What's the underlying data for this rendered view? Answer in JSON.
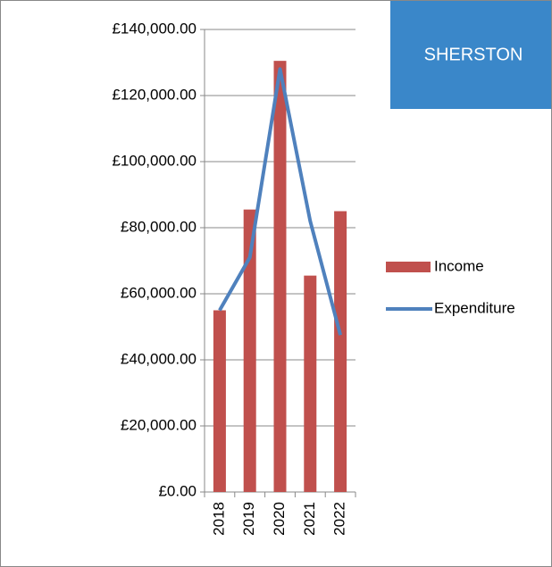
{
  "chart_data": {
    "type": "combo",
    "title": "SHERSTON",
    "categories": [
      "2018",
      "2019",
      "2020",
      "2021",
      "2022"
    ],
    "series": [
      {
        "name": "Income",
        "type": "bar",
        "color": "#c0504d",
        "values": [
          55000,
          85500,
          130500,
          65500,
          85000
        ]
      },
      {
        "name": "Expenditure",
        "type": "line",
        "color": "#4f81bd",
        "values": [
          55000,
          71000,
          128000,
          82000,
          47500
        ]
      }
    ],
    "ylim": [
      0,
      140000
    ],
    "yticks": [
      {
        "value": 0,
        "label": "£0.00"
      },
      {
        "value": 20000,
        "label": "£20,000.00"
      },
      {
        "value": 40000,
        "label": "£40,000.00"
      },
      {
        "value": 60000,
        "label": "£60,000.00"
      },
      {
        "value": 80000,
        "label": "£80,000.00"
      },
      {
        "value": 100000,
        "label": "£100,000.00"
      },
      {
        "value": 120000,
        "label": "£120,000.00"
      },
      {
        "value": 140000,
        "label": "£140,000.00"
      }
    ],
    "grid": true,
    "legend": "right",
    "title_box_color": "#3a87c9"
  }
}
